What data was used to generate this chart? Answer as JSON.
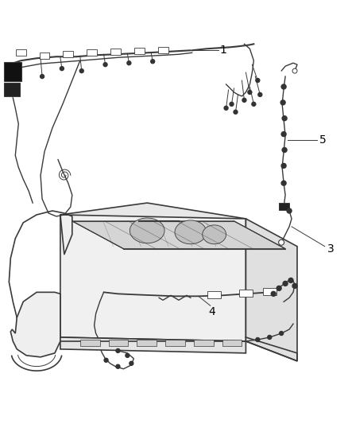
{
  "background_color": "#ffffff",
  "line_color": "#3a3a3a",
  "label_color": "#000000",
  "fig_width": 4.38,
  "fig_height": 5.33,
  "dpi": 100,
  "label_fontsize": 10,
  "lw_wire": 1.0,
  "lw_chassis": 1.2
}
